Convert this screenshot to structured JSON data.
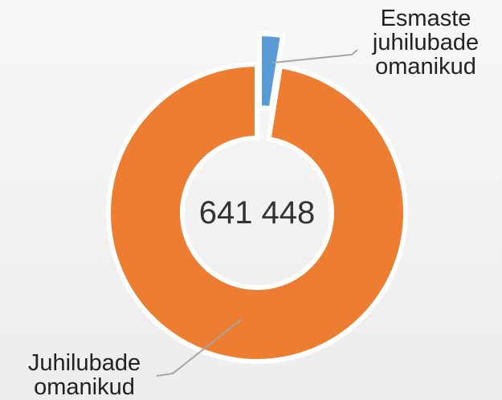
{
  "chart_data": {
    "type": "donut",
    "center_label": "641 448",
    "categories": [
      "Esmaste juhilubade omanikud",
      "Juhilubade omanikud"
    ],
    "values": [
      2.5,
      97.5
    ],
    "colors": [
      "#5b9bd5",
      "#ed7d31"
    ]
  }
}
